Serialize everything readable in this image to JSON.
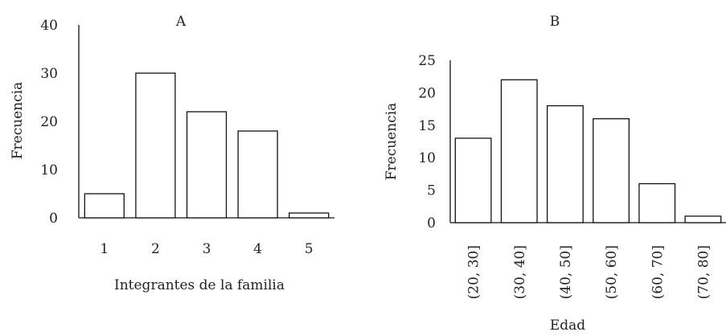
{
  "chart_data": [
    {
      "type": "bar",
      "title": "A",
      "xlabel": "Integrantes de la familia",
      "ylabel": "Frecuencia",
      "categories": [
        "1",
        "2",
        "3",
        "4",
        "5"
      ],
      "values": [
        5,
        30,
        22,
        18,
        1
      ],
      "ylim": [
        0,
        40
      ],
      "yticks": [
        "0",
        "10",
        "20",
        "30",
        "40"
      ],
      "grid": false,
      "legend": "none"
    },
    {
      "type": "bar",
      "title": "B",
      "xlabel": "Edad",
      "ylabel": "Frecuencia",
      "categories": [
        "(20, 30]",
        "(30, 40]",
        "(40, 50]",
        "(50, 60]",
        "(60, 70]",
        "(70, 80]"
      ],
      "values": [
        13,
        22,
        18,
        16,
        6,
        1
      ],
      "ylim": [
        0,
        25
      ],
      "yticks": [
        "0",
        "5",
        "10",
        "15",
        "20",
        "25"
      ],
      "grid": false,
      "legend": "none"
    }
  ]
}
